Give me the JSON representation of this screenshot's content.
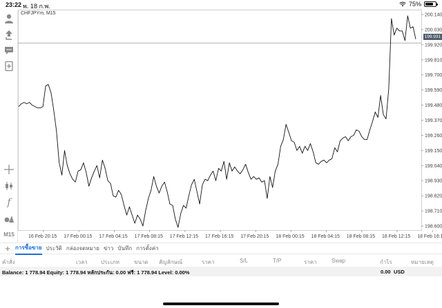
{
  "status": {
    "time": "23:22",
    "date": "พ. 18 ก.พ.",
    "battery": "75%",
    "battery_level": 0.75
  },
  "chart": {
    "title": "CHFJPYm, M15",
    "current_price": "199.931",
    "y_ticks": [
      "200.140",
      "200.030",
      "199.920",
      "199.810",
      "199.700",
      "199.590",
      "199.480",
      "199.370",
      "199.260",
      "199.150",
      "199.040",
      "198.930",
      "198.820",
      "198.710",
      "198.600"
    ],
    "x_ticks": [
      "16 Feb 20:15",
      "17 Feb 00:15",
      "17 Feb 04:15",
      "17 Feb 08:15",
      "17 Feb 12:15",
      "17 Feb 16:15",
      "17 Feb 20:15",
      "18 Feb 00:15",
      "18 Feb 04:15",
      "18 Feb 08:15",
      "18 Feb 12:15",
      "18 Feb 16:15"
    ]
  },
  "chart_data": {
    "type": "line",
    "ylim": [
      198.57,
      200.175
    ],
    "series": [
      {
        "values": [
          199.47,
          199.49,
          199.5,
          199.49,
          199.5,
          199.48,
          199.47,
          199.46,
          199.46,
          199.47,
          199.62,
          199.63,
          199.57,
          199.44,
          199.29,
          199.06,
          198.97,
          199.15,
          199.04,
          198.98,
          198.94,
          198.92,
          199.0,
          199.01,
          199.06,
          198.99,
          198.89,
          198.95,
          199.0,
          199.04,
          198.95,
          199.08,
          199.02,
          198.93,
          198.91,
          198.82,
          198.81,
          198.86,
          198.83,
          198.75,
          198.68,
          198.74,
          198.68,
          198.62,
          198.68,
          198.65,
          198.6,
          198.71,
          198.8,
          198.86,
          198.96,
          198.89,
          198.84,
          198.89,
          198.92,
          198.85,
          198.76,
          198.75,
          198.65,
          198.59,
          198.69,
          198.75,
          198.73,
          198.82,
          198.9,
          198.94,
          198.85,
          198.76,
          198.9,
          198.94,
          198.93,
          198.97,
          199.0,
          198.93,
          199.02,
          199.0,
          199.07,
          198.94,
          199.06,
          199.0,
          199.03,
          199.0,
          198.98,
          199.01,
          199.05,
          198.99,
          198.94,
          198.96,
          198.94,
          198.95,
          198.92,
          198.93,
          198.8,
          198.96,
          198.88,
          199.0,
          199.05,
          199.18,
          199.23,
          199.34,
          199.28,
          199.22,
          199.21,
          199.15,
          199.18,
          199.13,
          199.18,
          199.15,
          199.2,
          199.14,
          199.06,
          199.05,
          199.07,
          199.08,
          199.06,
          199.08,
          199.09,
          199.17,
          199.14,
          199.22,
          199.24,
          199.25,
          199.22,
          199.25,
          199.26,
          199.3,
          199.29,
          199.25,
          199.23,
          199.23,
          199.3,
          199.36,
          199.43,
          199.39,
          199.55,
          199.41,
          199.38,
          199.6,
          200.11,
          199.99,
          200.04,
          200.02,
          200.02,
          199.95,
          200.13,
          200.04,
          200.05,
          199.96
        ]
      }
    ]
  },
  "tabs": [
    "การซื้อขาย",
    "ประวัติ",
    "กล่องจดหมาย",
    "ข่าว",
    "บันทึก",
    "การตั้งค่า"
  ],
  "table_headers": [
    "คำสั่ง",
    "เวลา",
    "ประเภท",
    "ขนาด",
    "สัญลักษณ์",
    "ราคา",
    "S/L",
    "T/P",
    "ราคา",
    "Swap",
    "กำไร",
    "หมายเหตุ"
  ],
  "balance": {
    "text": "Balance: 1 778.94 Equity: 1 778.94 หลักประกัน: 0.00 ฟรี: 1 778.94 Level: 0.00%",
    "profit": "0.00",
    "currency": "USD"
  },
  "toolbar": {
    "timeframe": "M15"
  }
}
